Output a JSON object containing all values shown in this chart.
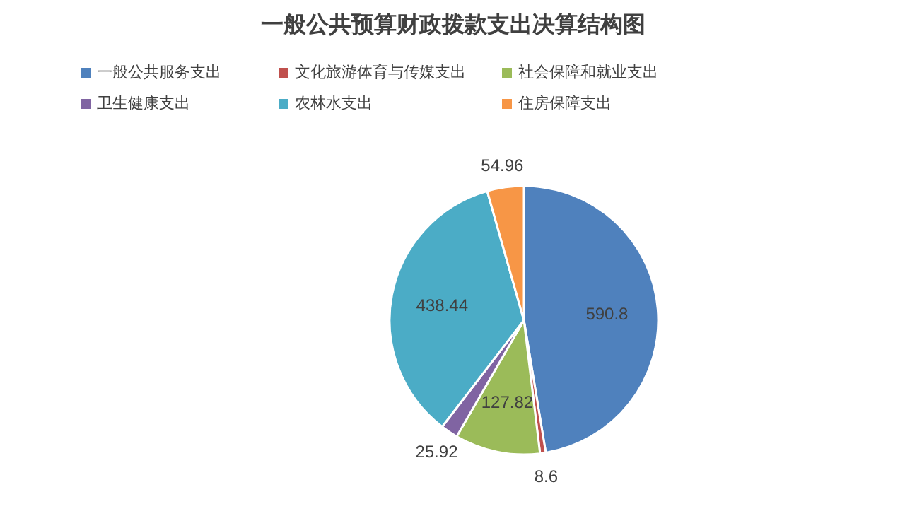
{
  "chart_data": {
    "type": "pie",
    "title": "一般公共预算财政拨款支出决算结构图",
    "categories": [
      "一般公共服务支出",
      "文化旅游体育与传媒支出",
      "社会保障和就业支出",
      "卫生健康支出",
      "农林水支出",
      "住房保障支出"
    ],
    "values": [
      590.8,
      8.6,
      127.82,
      25.92,
      438.44,
      54.96
    ],
    "colors": [
      "#4f81bd",
      "#c0504d",
      "#9bbb59",
      "#8064a2",
      "#4bacc6",
      "#f79646"
    ],
    "data_labels": true,
    "legend": "top"
  }
}
